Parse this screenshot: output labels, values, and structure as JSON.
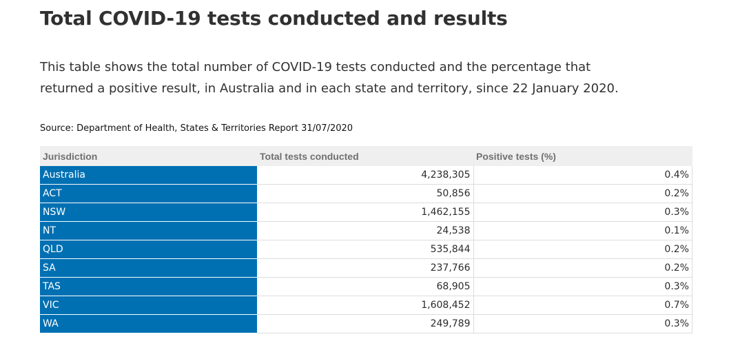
{
  "title": "Total COVID-19 tests conducted and results",
  "intro": "This table shows the total number of COVID-19 tests conducted and the percentage that returned a positive result, in Australia and in each state and territory, since 22 January 2020.",
  "source": "Source: Department of Health, States & Territories Report 31/07/2020",
  "table": {
    "headers": [
      "Jurisdiction",
      "Total tests conducted",
      "Positive tests (%)"
    ],
    "rows": [
      {
        "jurisdiction": "Australia",
        "total": "4,238,305",
        "positive": "0.4%"
      },
      {
        "jurisdiction": "ACT",
        "total": "50,856",
        "positive": "0.2%"
      },
      {
        "jurisdiction": "NSW",
        "total": "1,462,155",
        "positive": "0.3%"
      },
      {
        "jurisdiction": "NT",
        "total": "24,538",
        "positive": "0.1%"
      },
      {
        "jurisdiction": "QLD",
        "total": "535,844",
        "positive": "0.2%"
      },
      {
        "jurisdiction": "SA",
        "total": "237,766",
        "positive": "0.2%"
      },
      {
        "jurisdiction": "TAS",
        "total": "68,905",
        "positive": "0.3%"
      },
      {
        "jurisdiction": "VIC",
        "total": "1,608,452",
        "positive": "0.7%"
      },
      {
        "jurisdiction": "WA",
        "total": "249,789",
        "positive": "0.3%"
      }
    ]
  },
  "colors": {
    "jurisdiction_cell_bg": "#0070b3",
    "header_bg": "#efefef",
    "header_text": "#707070",
    "title_text": "#313131"
  }
}
